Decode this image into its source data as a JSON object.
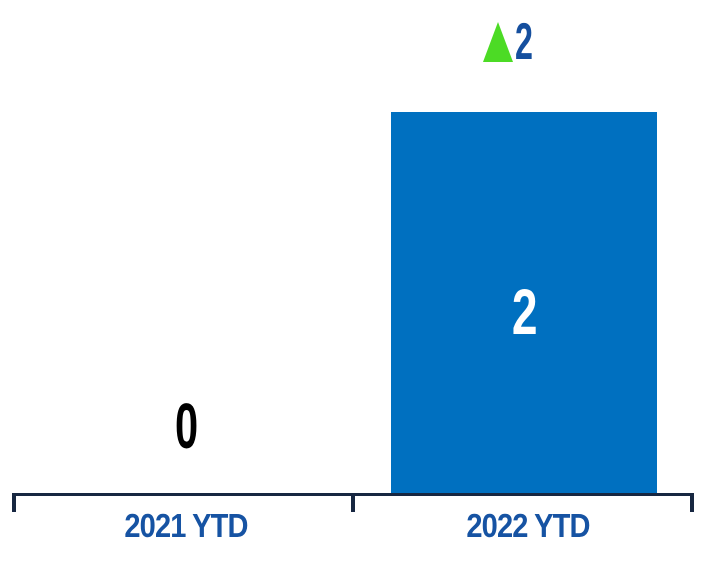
{
  "chart_data": {
    "type": "bar",
    "title": "",
    "xlabel": "",
    "ylabel": "",
    "categories": [
      "2021 YTD",
      "2022 YTD"
    ],
    "values": [
      0,
      2
    ],
    "data_labels": [
      "0",
      "2"
    ],
    "ylim": [
      0,
      2
    ],
    "gridlines": false,
    "legend": false,
    "annotation": {
      "icon": "up-triangle-icon",
      "text": "2",
      "meaning": "increase of 2 vs prior year"
    },
    "colors": {
      "bar": "#0070C0",
      "bar-label": "#FFFFFF",
      "zero-label": "#000000",
      "category-label": "#1653A3",
      "annotation-value": "#154F9E",
      "annotation-triangle": "#4CDB25",
      "axis": "#172741"
    }
  }
}
